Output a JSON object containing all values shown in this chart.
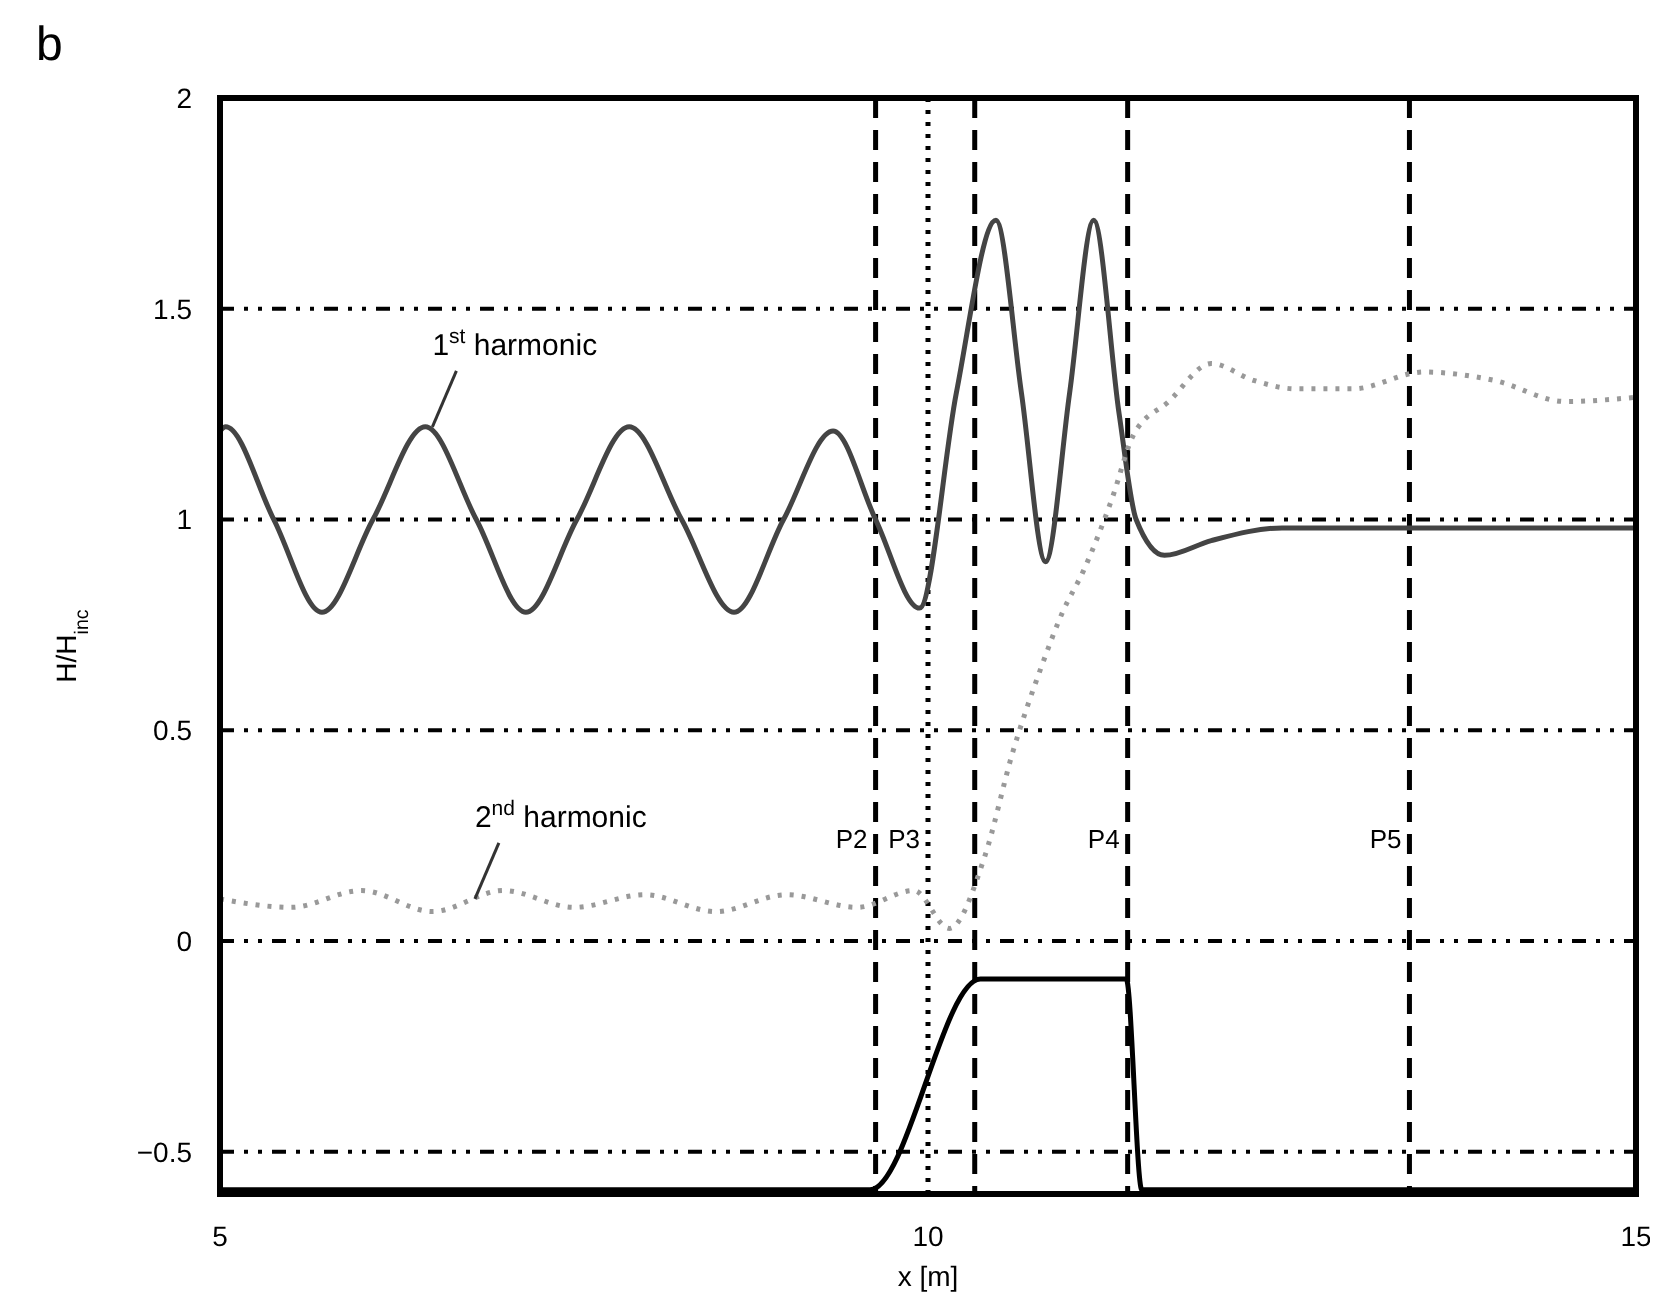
{
  "chart_data": {
    "type": "line",
    "title": "b",
    "xlabel": "x [m]",
    "ylabel": "H/H$_{inc}$",
    "xlim": [
      5,
      15
    ],
    "ylim": [
      -0.6,
      2
    ],
    "xticks": [
      5,
      10,
      15
    ],
    "yticks": [
      {
        "value": -0.5,
        "label": "−0.5"
      },
      0,
      0.5,
      1,
      1.5,
      2
    ],
    "grid": "y",
    "marker": "none",
    "series": [
      {
        "color": "#444444",
        "line_style": "solid",
        "x": [
          5,
          5.04,
          5.38,
          5.72,
          6.08,
          6.45,
          6.81,
          7.16,
          7.52,
          7.89,
          8.26,
          8.63,
          8.98,
          9.33,
          9.63,
          9.94,
          10.2,
          10.48,
          10.66,
          10.83,
          11.0,
          11.17,
          11.35,
          11.47,
          11.67,
          12.0,
          12.5,
          15
        ],
        "values": [
          1.21,
          1.22,
          1.0,
          0.78,
          1.0,
          1.22,
          1.0,
          0.78,
          1.0,
          1.22,
          1.0,
          0.78,
          1.0,
          1.21,
          1.0,
          0.79,
          1.3,
          1.71,
          1.3,
          0.9,
          1.3,
          1.71,
          1.25,
          1.0,
          0.915,
          0.95,
          0.98,
          0.98
        ]
      },
      {
        "color": "#999999",
        "line_style": "dotted",
        "x": [
          5,
          5.5,
          6,
          6.5,
          7,
          7.5,
          8,
          8.5,
          9,
          9.5,
          9.9,
          10.15,
          10.4,
          10.6,
          10.8,
          10.95,
          11.1,
          11.3,
          11.45,
          11.7,
          12.0,
          12.3,
          12.6,
          13.0,
          13.5,
          14.0,
          14.5,
          15
        ],
        "values": [
          0.1,
          0.08,
          0.12,
          0.07,
          0.12,
          0.08,
          0.11,
          0.07,
          0.11,
          0.08,
          0.12,
          0.03,
          0.2,
          0.45,
          0.65,
          0.78,
          0.88,
          1.05,
          1.2,
          1.28,
          1.37,
          1.33,
          1.31,
          1.31,
          1.35,
          1.33,
          1.28,
          1.29
        ]
      },
      {
        "color": "#000000",
        "line_style": "solid",
        "x": [
          5,
          9.59,
          10.37,
          11.4,
          11.51,
          15
        ],
        "values": [
          -0.59,
          -0.59,
          -0.09,
          -0.09,
          -0.59,
          -0.59
        ]
      }
    ],
    "ref_lines": [
      {
        "axis": "x",
        "value": 9.63,
        "line_style": "dashed",
        "label": "P2"
      },
      {
        "axis": "x",
        "value": 10.0,
        "line_style": "dotted",
        "label": "P3"
      },
      {
        "axis": "x",
        "value": 10.33,
        "line_style": "dashed"
      },
      {
        "axis": "x",
        "value": 11.41,
        "line_style": "dashed",
        "label": "P4"
      },
      {
        "axis": "x",
        "value": 13.4,
        "line_style": "dashed",
        "label": "P5"
      }
    ],
    "annotations": [
      {
        "text": "1$^{st}$ harmonic",
        "x": 6.5,
        "y": 1.22
      },
      {
        "text": "2$^{nd}$ harmonic",
        "x": 6.8,
        "y": 0.1
      }
    ]
  }
}
